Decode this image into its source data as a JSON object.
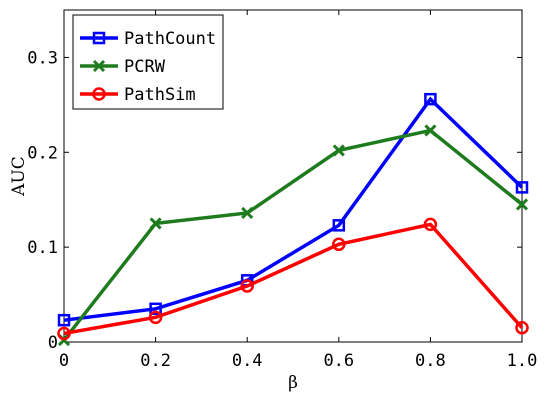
{
  "chart_data": {
    "type": "line",
    "title": "",
    "xlabel": "β",
    "ylabel": "AUC",
    "x": [
      0,
      0.2,
      0.4,
      0.6,
      0.8,
      1.0
    ],
    "x_tick_labels": [
      "0",
      "0.2",
      "0.4",
      "0.6",
      "0.8",
      "1.0"
    ],
    "xlim": [
      0,
      1
    ],
    "ylim": [
      0,
      0.35
    ],
    "y_ticks": [
      0,
      0.1,
      0.2,
      0.3
    ],
    "y_tick_labels": [
      "0",
      "0.1",
      "0.2",
      "0.3"
    ],
    "grid": false,
    "legend_position": "top-left",
    "series": [
      {
        "name": "PathCount",
        "color": "#0000ff",
        "marker": "square",
        "values": [
          0.023,
          0.035,
          0.065,
          0.123,
          0.256,
          0.163
        ]
      },
      {
        "name": "PCRW",
        "color": "#1e7b1e",
        "marker": "x",
        "values": [
          0.002,
          0.125,
          0.136,
          0.202,
          0.223,
          0.145
        ]
      },
      {
        "name": "PathSim",
        "color": "#ff0000",
        "marker": "circle",
        "values": [
          0.009,
          0.026,
          0.059,
          0.103,
          0.124,
          0.015
        ]
      }
    ]
  }
}
